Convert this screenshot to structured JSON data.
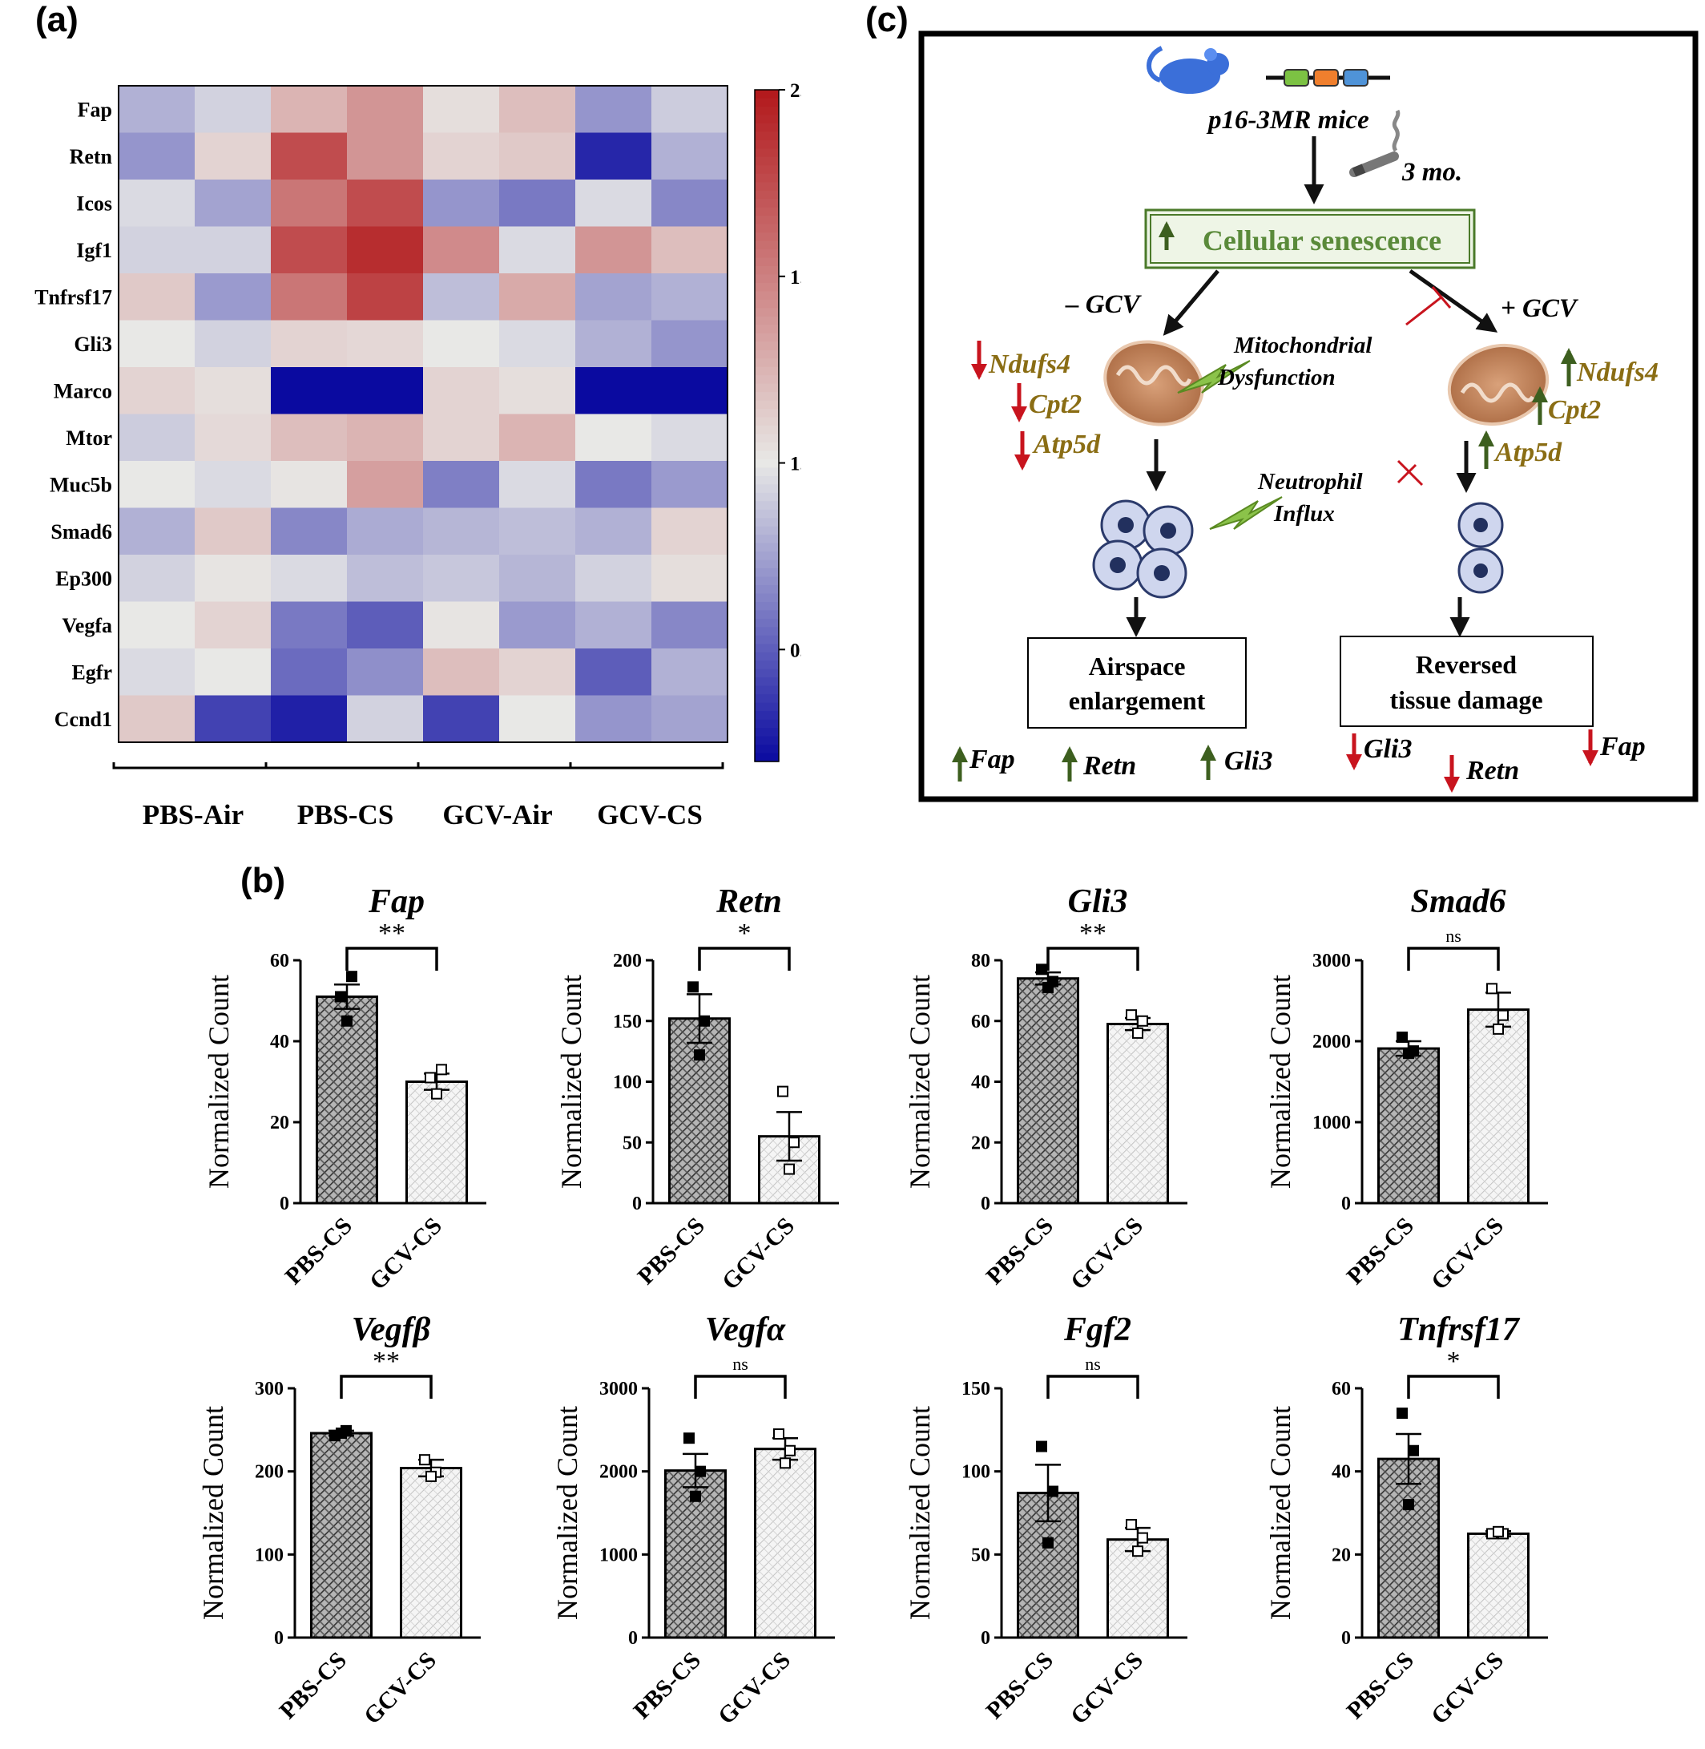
{
  "panel_labels": {
    "a": "(a)",
    "b": "(b)",
    "c": "(c)"
  },
  "colors": {
    "low": "#0a0aa0",
    "mid": "#e8e8e6",
    "high": "#b2181b"
  },
  "chart_data": [
    {
      "type": "heatmap",
      "panel": "(a)",
      "rows": [
        "Fap",
        "Retn",
        "Icos",
        "Igf1",
        "Tnfrsf17",
        "Gli3",
        "Marco",
        "Mtor",
        "Muc5b",
        "Smad6",
        "Ep300",
        "Vegfa",
        "Egfr",
        "Ccnd1"
      ],
      "groups": [
        "PBS-Air",
        "PBS-CS",
        "GCV-Air",
        "GCV-CS"
      ],
      "values": [
        [
          0.8,
          0.92,
          1.25,
          1.4,
          1.05,
          1.2,
          0.7,
          0.9
        ],
        [
          0.7,
          1.1,
          1.75,
          1.4,
          1.1,
          1.15,
          0.3,
          0.8
        ],
        [
          0.95,
          0.75,
          1.55,
          1.75,
          0.7,
          0.6,
          0.95,
          0.65
        ],
        [
          0.92,
          0.92,
          1.75,
          1.9,
          1.45,
          0.95,
          1.4,
          1.2
        ],
        [
          1.15,
          0.72,
          1.55,
          1.8,
          0.85,
          1.3,
          0.75,
          0.8
        ],
        [
          1.0,
          0.92,
          1.1,
          1.08,
          1.0,
          0.95,
          0.8,
          0.7
        ],
        [
          1.1,
          1.05,
          0.1,
          0.1,
          1.1,
          1.05,
          0.1,
          0.1
        ],
        [
          0.9,
          1.07,
          1.2,
          1.25,
          1.1,
          1.25,
          1.0,
          0.95
        ],
        [
          1.0,
          0.95,
          1.02,
          1.35,
          0.62,
          0.95,
          0.6,
          0.72
        ],
        [
          0.8,
          1.15,
          0.65,
          0.78,
          0.82,
          0.85,
          0.8,
          1.1
        ],
        [
          0.92,
          1.02,
          0.95,
          0.85,
          0.88,
          0.82,
          0.92,
          1.05
        ],
        [
          1.0,
          1.1,
          0.6,
          0.5,
          1.02,
          0.72,
          0.8,
          0.65
        ],
        [
          0.95,
          1.0,
          0.55,
          0.68,
          1.2,
          1.1,
          0.5,
          0.8
        ],
        [
          1.15,
          0.4,
          0.28,
          0.92,
          0.4,
          1.0,
          0.7,
          0.75
        ]
      ],
      "colorbar": {
        "min": 0.2,
        "max": 2.0,
        "ticks": [
          "0.5",
          "1.0",
          "1.5",
          "2.0"
        ]
      }
    },
    {
      "type": "bar",
      "title": "Fap",
      "categories": [
        "PBS-CS",
        "GCV-CS"
      ],
      "values": [
        51,
        30
      ],
      "errors": [
        3,
        2
      ],
      "points": [
        [
          51,
          56,
          45
        ],
        [
          31,
          33,
          27
        ]
      ],
      "ylim": [
        0,
        60
      ],
      "yticks": [
        "0",
        "20",
        "40",
        "60"
      ],
      "ylabel": "Normalized Count",
      "sig": "**"
    },
    {
      "type": "bar",
      "title": "Retn",
      "categories": [
        "PBS-CS",
        "GCV-CS"
      ],
      "values": [
        152,
        55
      ],
      "errors": [
        20,
        20
      ],
      "points": [
        [
          178,
          150,
          122
        ],
        [
          92,
          50,
          28
        ]
      ],
      "ylim": [
        0,
        200
      ],
      "yticks": [
        "0",
        "50",
        "100",
        "150",
        "200"
      ],
      "ylabel": "Normalized Count",
      "sig": "*"
    },
    {
      "type": "bar",
      "title": "Gli3",
      "categories": [
        "PBS-CS",
        "GCV-CS"
      ],
      "values": [
        74,
        59
      ],
      "errors": [
        2,
        2
      ],
      "points": [
        [
          77,
          73,
          71
        ],
        [
          62,
          60,
          56
        ]
      ],
      "ylim": [
        0,
        80
      ],
      "yticks": [
        "0",
        "20",
        "40",
        "60",
        "80"
      ],
      "ylabel": "Normalized Count",
      "sig": "**"
    },
    {
      "type": "bar",
      "title": "Smad6",
      "categories": [
        "PBS-CS",
        "GCV-CS"
      ],
      "values": [
        1910,
        2390
      ],
      "errors": [
        90,
        210
      ],
      "points": [
        [
          2050,
          1880,
          1850
        ],
        [
          2650,
          2320,
          2150
        ]
      ],
      "ylim": [
        0,
        3000
      ],
      "yticks": [
        "0",
        "1000",
        "2000",
        "3000"
      ],
      "ylabel": "Normalized Count",
      "sig": "ns"
    },
    {
      "type": "bar",
      "title": "Vegfβ",
      "categories": [
        "PBS-CS",
        "GCV-CS"
      ],
      "values": [
        246,
        204
      ],
      "errors": [
        3,
        10
      ],
      "points": [
        [
          243,
          249,
          246
        ],
        [
          214,
          199,
          194
        ]
      ],
      "ylim": [
        0,
        300
      ],
      "yticks": [
        "0",
        "100",
        "200",
        "300"
      ],
      "ylabel": "Normalized Count",
      "sig": "**"
    },
    {
      "type": "bar",
      "title": "Vegfα",
      "categories": [
        "PBS-CS",
        "GCV-CS"
      ],
      "values": [
        2010,
        2270
      ],
      "errors": [
        200,
        130
      ],
      "points": [
        [
          2400,
          2000,
          1700
        ],
        [
          2450,
          2250,
          2100
        ]
      ],
      "ylim": [
        0,
        3000
      ],
      "yticks": [
        "0",
        "1000",
        "2000",
        "3000"
      ],
      "ylabel": "Normalized Count",
      "sig": "ns"
    },
    {
      "type": "bar",
      "title": "Fgf2",
      "categories": [
        "PBS-CS",
        "GCV-CS"
      ],
      "values": [
        87,
        59
      ],
      "errors": [
        17,
        7
      ],
      "points": [
        [
          115,
          88,
          57
        ],
        [
          68,
          60,
          52
        ]
      ],
      "ylim": [
        0,
        150
      ],
      "yticks": [
        "0",
        "50",
        "100",
        "150"
      ],
      "ylabel": "Normalized Count",
      "sig": "ns"
    },
    {
      "type": "bar",
      "title": "Tnfrsf17",
      "categories": [
        "PBS-CS",
        "GCV-CS"
      ],
      "values": [
        43,
        25
      ],
      "errors": [
        6,
        0.6
      ],
      "points": [
        [
          54,
          45,
          32
        ],
        [
          25,
          25,
          25.5
        ]
      ],
      "ylim": [
        0,
        60
      ],
      "yticks": [
        "0",
        "20",
        "40",
        "60"
      ],
      "ylabel": "Normalized Count",
      "sig": "*"
    }
  ],
  "diagram": {
    "mice_label": "p16-3MR mice",
    "duration": "3 mo.",
    "senescence": "Cellular senescence",
    "minus_gcv": "– GCV",
    "plus_gcv": "+ GCV",
    "mito_dysfunction": [
      "Mitochondrial",
      "Dysfunction"
    ],
    "neutrophil": [
      "Neutrophil",
      "Influx"
    ],
    "left_genes": [
      "Ndufs4",
      "Cpt2",
      "Atp5d"
    ],
    "right_genes": [
      "Ndufs4",
      "Cpt2",
      "Atp5d"
    ],
    "outcome_left": [
      "Airspace",
      "enlargement"
    ],
    "outcome_right": [
      "Reversed",
      "tissue damage"
    ],
    "bottom_left_genes": [
      "Fap",
      "Retn",
      "Gli3"
    ],
    "bottom_right_genes": [
      "Gli3",
      "Retn",
      "Fap"
    ]
  }
}
